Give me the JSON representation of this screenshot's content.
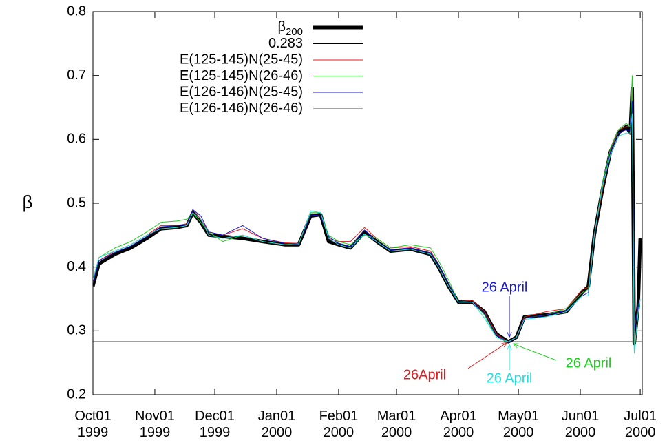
{
  "chart_data": {
    "type": "line",
    "y_label": "β",
    "x": [
      "1999-10-01",
      "1999-10-04",
      "1999-10-12",
      "1999-10-20",
      "1999-10-28",
      "1999-11-04",
      "1999-11-12",
      "1999-11-17",
      "1999-11-20",
      "1999-11-24",
      "1999-11-28",
      "1999-12-05",
      "1999-12-15",
      "1999-12-25",
      "2000-01-05",
      "2000-01-12",
      "2000-01-18",
      "2000-01-23",
      "2000-01-27",
      "2000-02-01",
      "2000-02-07",
      "2000-02-14",
      "2000-02-20",
      "2000-02-27",
      "2000-03-08",
      "2000-03-18",
      "2000-03-22",
      "2000-03-27",
      "2000-04-01",
      "2000-04-08",
      "2000-04-14",
      "2000-04-20",
      "2000-04-26",
      "2000-04-30",
      "2000-05-04",
      "2000-05-15",
      "2000-05-25",
      "2000-06-02",
      "2000-06-05",
      "2000-06-08",
      "2000-06-12",
      "2000-06-16",
      "2000-06-20",
      "2000-06-24",
      "2000-06-26",
      "2000-06-27",
      "2000-06-28",
      "2000-06-30",
      "2000-07-01"
    ],
    "series": [
      {
        "name": "β200",
        "color": "#000000",
        "width": 5,
        "values": [
          0.37,
          0.405,
          0.42,
          0.43,
          0.445,
          0.46,
          0.462,
          0.465,
          0.485,
          0.47,
          0.45,
          0.448,
          0.445,
          0.44,
          0.435,
          0.435,
          0.48,
          0.482,
          0.44,
          0.435,
          0.43,
          0.455,
          0.44,
          0.425,
          0.428,
          0.42,
          0.4,
          0.37,
          0.345,
          0.345,
          0.33,
          0.295,
          0.283,
          0.29,
          0.322,
          0.325,
          0.33,
          0.36,
          0.37,
          0.45,
          0.52,
          0.58,
          0.61,
          0.62,
          0.61,
          0.68,
          0.28,
          0.34,
          0.445
        ]
      },
      {
        "name": "0.283",
        "color": "#000000",
        "width": 1,
        "x": [
          "1999-10-01",
          "2000-07-02"
        ],
        "values": [
          0.283,
          0.283
        ]
      },
      {
        "name": "E(125-145)N(25-45)",
        "color": "#e41a1c",
        "width": 1,
        "values": [
          0.375,
          0.41,
          0.425,
          0.435,
          0.45,
          0.465,
          0.465,
          0.468,
          0.49,
          0.475,
          0.455,
          0.45,
          0.46,
          0.445,
          0.438,
          0.437,
          0.485,
          0.485,
          0.445,
          0.44,
          0.44,
          0.462,
          0.445,
          0.43,
          0.432,
          0.425,
          0.405,
          0.375,
          0.345,
          0.348,
          0.33,
          0.295,
          0.282,
          0.29,
          0.322,
          0.33,
          0.335,
          0.365,
          0.368,
          0.45,
          0.52,
          0.58,
          0.615,
          0.62,
          0.62,
          0.68,
          0.3,
          0.34,
          0.35
        ]
      },
      {
        "name": "E(125-145)N(26-46)",
        "color": "#22cc22",
        "width": 1,
        "values": [
          0.38,
          0.415,
          0.43,
          0.44,
          0.455,
          0.47,
          0.472,
          0.475,
          0.485,
          0.47,
          0.455,
          0.44,
          0.45,
          0.44,
          0.435,
          0.437,
          0.485,
          0.485,
          0.45,
          0.44,
          0.435,
          0.45,
          0.445,
          0.43,
          0.435,
          0.43,
          0.41,
          0.38,
          0.345,
          0.345,
          0.325,
          0.29,
          0.282,
          0.29,
          0.32,
          0.325,
          0.335,
          0.36,
          0.365,
          0.45,
          0.53,
          0.585,
          0.615,
          0.625,
          0.62,
          0.7,
          0.27,
          0.33,
          0.35
        ]
      },
      {
        "name": "E(126-146)N(25-45)",
        "color": "#1a1acc",
        "width": 1,
        "values": [
          0.375,
          0.41,
          0.423,
          0.433,
          0.448,
          0.463,
          0.465,
          0.467,
          0.49,
          0.48,
          0.455,
          0.45,
          0.465,
          0.445,
          0.437,
          0.436,
          0.482,
          0.48,
          0.448,
          0.437,
          0.432,
          0.458,
          0.44,
          0.427,
          0.43,
          0.422,
          0.405,
          0.375,
          0.345,
          0.345,
          0.328,
          0.293,
          0.282,
          0.29,
          0.32,
          0.325,
          0.332,
          0.355,
          0.36,
          0.45,
          0.525,
          0.58,
          0.61,
          0.615,
          0.615,
          0.66,
          0.3,
          0.34,
          0.35
        ]
      },
      {
        "name": "E(126-146)N(26-46)",
        "color": "#22dddd",
        "width": 1,
        "values": [
          0.38,
          0.415,
          0.425,
          0.435,
          0.45,
          0.46,
          0.462,
          0.465,
          0.485,
          0.475,
          0.45,
          0.445,
          0.45,
          0.44,
          0.435,
          0.435,
          0.488,
          0.485,
          0.445,
          0.435,
          0.43,
          0.452,
          0.44,
          0.425,
          0.428,
          0.42,
          0.4,
          0.37,
          0.345,
          0.345,
          0.32,
          0.29,
          0.283,
          0.29,
          0.318,
          0.322,
          0.33,
          0.355,
          0.355,
          0.45,
          0.525,
          0.575,
          0.605,
          0.61,
          0.61,
          0.64,
          0.265,
          0.33,
          0.35
        ]
      }
    ],
    "annotations": [
      {
        "text": "26 April",
        "color": "#1a1acc"
      },
      {
        "text": "26April",
        "color": "#e41a1c"
      },
      {
        "text": "26 April",
        "color": "#22dddd"
      },
      {
        "text": "26 April",
        "color": "#22cc22"
      }
    ],
    "xlim": [
      "1999-10-01",
      "2000-07-02"
    ],
    "xticks": [
      {
        "value": "1999-10-01",
        "label": "Oct01\n1999"
      },
      {
        "value": "1999-11-01",
        "label": "Nov01\n1999"
      },
      {
        "value": "1999-12-01",
        "label": "Dec01\n1999"
      },
      {
        "value": "2000-01-01",
        "label": "Jan01\n2000"
      },
      {
        "value": "2000-02-01",
        "label": "Feb01\n2000"
      },
      {
        "value": "2000-03-01",
        "label": "Mar01\n2000"
      },
      {
        "value": "2000-04-01",
        "label": "Apr01\n2000"
      },
      {
        "value": "2000-05-01",
        "label": "May01\n2000"
      },
      {
        "value": "2000-06-01",
        "label": "Jun01\n2000"
      },
      {
        "value": "2000-07-01",
        "label": "Jul01\n2000"
      }
    ],
    "ylim": [
      0.2,
      0.8
    ],
    "yticks": [
      0.2,
      0.3,
      0.4,
      0.5,
      0.6,
      0.7,
      0.8
    ],
    "legend": "top-left"
  }
}
